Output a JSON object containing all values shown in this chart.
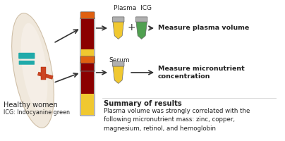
{
  "bg_color": "#ffffff",
  "label_plasma_icg": "Plasma  ICG",
  "label_serum": "Serum",
  "label_measure_plasma": "Measure plasma volume",
  "label_measure_micronutrient": "Measure micronutrient\nconcentration",
  "label_healthy_women": "Healthy women",
  "label_icg": "ICG: Indocyanine green",
  "summary_title": "Summary of results",
  "summary_body": "Plasma volume was strongly correlated with the\nfollowing micronutrient mass: zinc, copper,\nmagnesium, retinol, and hemoglobin",
  "arm_skin": "#f0e8dc",
  "arm_outline": "#d0c0a8",
  "tube_orange_cap": "#e06010",
  "tube_dark_red": "#8b0000",
  "tube_yellow": "#f0c830",
  "tube_gray_cap": "#b0b0b0",
  "tube_green": "#50a050",
  "plus_color": "#333333",
  "arrow_color": "#333333",
  "text_color": "#222222",
  "teal_band": "#20aaaa",
  "needle_color": "#cc4422",
  "tube_outline": "#666666"
}
